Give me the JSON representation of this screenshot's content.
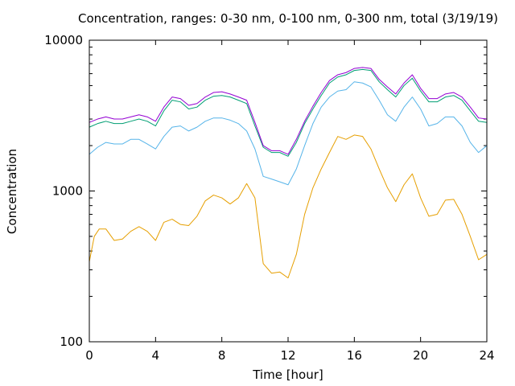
{
  "chart_data": {
    "type": "line",
    "title": "Concentration, ranges: 0-30 nm, 0-100 nm, 0-300 nm, total (3/19/19)",
    "xlabel": "Time [hour]",
    "ylabel": "Concentration",
    "xlim": [
      0,
      24
    ],
    "ylim": [
      100,
      10000
    ],
    "yscale": "log",
    "xticks": [
      0,
      4,
      8,
      12,
      16,
      20,
      24
    ],
    "xtick_labels": [
      "0",
      "4",
      "8",
      "12",
      "16",
      "20",
      "24"
    ],
    "yticks": [
      100,
      1000,
      10000
    ],
    "ytick_labels": [
      "100",
      "1000",
      "10000"
    ],
    "grid": false,
    "legend": "none",
    "series": [
      {
        "color": "#e69f00",
        "x": [
          0,
          0.3,
          0.6,
          1.0,
          1.5,
          2.0,
          2.5,
          3.0,
          3.5,
          4.0,
          4.5,
          5.0,
          5.5,
          6.0,
          6.5,
          7.0,
          7.5,
          8.0,
          8.5,
          9.0,
          9.5,
          10.0,
          10.5,
          11.0,
          11.5,
          12.0,
          12.5,
          13.0,
          13.5,
          14.0,
          14.5,
          15.0,
          15.5,
          16.0,
          16.5,
          17.0,
          17.5,
          18.0,
          18.5,
          19.0,
          19.5,
          20.0,
          20.5,
          21.0,
          21.5,
          22.0,
          22.5,
          23.0,
          23.5,
          24.0
        ],
        "y": [
          340,
          500,
          560,
          560,
          470,
          480,
          540,
          580,
          540,
          470,
          620,
          650,
          600,
          590,
          680,
          860,
          940,
          900,
          820,
          900,
          1120,
          900,
          330,
          285,
          290,
          265,
          380,
          700,
          1050,
          1400,
          1800,
          2300,
          2200,
          2350,
          2300,
          1900,
          1400,
          1050,
          850,
          1100,
          1300,
          900,
          680,
          700,
          870,
          880,
          700,
          500,
          350,
          380
        ]
      },
      {
        "color": "#56b4e9",
        "x": [
          0,
          0.5,
          1.0,
          1.5,
          2.0,
          2.5,
          3.0,
          3.5,
          4.0,
          4.5,
          5.0,
          5.5,
          6.0,
          6.5,
          7.0,
          7.5,
          8.0,
          8.5,
          9.0,
          9.5,
          10.0,
          10.5,
          11.0,
          11.5,
          12.0,
          12.5,
          13.0,
          13.5,
          14.0,
          14.5,
          15.0,
          15.5,
          16.0,
          16.5,
          17.0,
          17.5,
          18.0,
          18.5,
          19.0,
          19.5,
          20.0,
          20.5,
          21.0,
          21.5,
          22.0,
          22.5,
          23.0,
          23.5,
          24.0
        ],
        "y": [
          1750,
          1950,
          2100,
          2050,
          2050,
          2200,
          2200,
          2050,
          1900,
          2300,
          2650,
          2700,
          2500,
          2650,
          2900,
          3050,
          3050,
          2950,
          2800,
          2500,
          1900,
          1250,
          1200,
          1150,
          1100,
          1400,
          2000,
          2800,
          3600,
          4200,
          4600,
          4700,
          5300,
          5200,
          4900,
          4000,
          3200,
          2900,
          3600,
          4200,
          3500,
          2700,
          2800,
          3100,
          3100,
          2700,
          2100,
          1800,
          2000
        ]
      },
      {
        "color": "#009e73",
        "x": [
          0,
          0.5,
          1.0,
          1.5,
          2.0,
          2.5,
          3.0,
          3.5,
          4.0,
          4.5,
          5.0,
          5.5,
          6.0,
          6.5,
          7.0,
          7.5,
          8.0,
          8.5,
          9.0,
          9.5,
          10.0,
          10.5,
          11.0,
          11.5,
          12.0,
          12.5,
          13.0,
          13.5,
          14.0,
          14.5,
          15.0,
          15.5,
          16.0,
          16.5,
          17.0,
          17.5,
          18.0,
          18.5,
          19.0,
          19.5,
          20.0,
          20.5,
          21.0,
          21.5,
          22.0,
          22.5,
          23.0,
          23.5,
          24.0
        ],
        "y": [
          2650,
          2800,
          2900,
          2800,
          2800,
          2900,
          3000,
          2900,
          2700,
          3400,
          4000,
          3900,
          3500,
          3600,
          4000,
          4250,
          4300,
          4200,
          4000,
          3800,
          2700,
          1950,
          1800,
          1800,
          1700,
          2100,
          2800,
          3500,
          4300,
          5200,
          5700,
          5900,
          6300,
          6400,
          6300,
          5300,
          4700,
          4200,
          5000,
          5600,
          4600,
          3900,
          3900,
          4200,
          4300,
          4000,
          3400,
          2900,
          2850
        ]
      },
      {
        "color": "#9400d3",
        "x": [
          0,
          0.5,
          1.0,
          1.5,
          2.0,
          2.5,
          3.0,
          3.5,
          4.0,
          4.5,
          5.0,
          5.5,
          6.0,
          6.5,
          7.0,
          7.5,
          8.0,
          8.5,
          9.0,
          9.5,
          10.0,
          10.5,
          11.0,
          11.5,
          12.0,
          12.5,
          13.0,
          13.5,
          14.0,
          14.5,
          15.0,
          15.5,
          16.0,
          16.5,
          17.0,
          17.5,
          18.0,
          18.5,
          19.0,
          19.5,
          20.0,
          20.5,
          21.0,
          21.5,
          22.0,
          22.5,
          23.0,
          23.5,
          24.0
        ],
        "y": [
          2850,
          3000,
          3100,
          3000,
          3000,
          3100,
          3200,
          3100,
          2900,
          3600,
          4200,
          4100,
          3700,
          3800,
          4200,
          4500,
          4550,
          4400,
          4200,
          4000,
          2850,
          2000,
          1850,
          1850,
          1750,
          2200,
          2900,
          3650,
          4500,
          5400,
          5900,
          6100,
          6500,
          6600,
          6500,
          5500,
          4900,
          4400,
          5200,
          5900,
          4800,
          4100,
          4100,
          4400,
          4500,
          4200,
          3600,
          3050,
          3000
        ]
      }
    ]
  }
}
